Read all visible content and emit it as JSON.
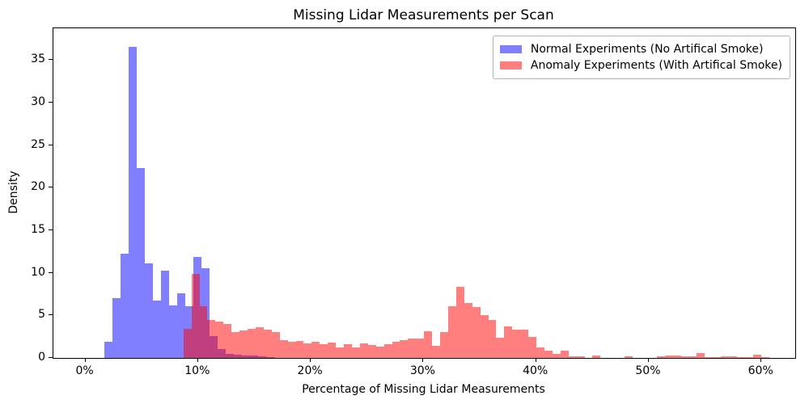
{
  "chart_data": {
    "type": "bar",
    "subtype": "overlapping-histogram",
    "title": "Missing Lidar Measurements per Scan",
    "xlabel": "Percentage of Missing Lidar Measurements",
    "ylabel": "Density",
    "grid": false,
    "legend_position": "upper right",
    "x_range_pct": [
      -2.84,
      63.0
    ],
    "y_range": [
      0,
      38.75
    ],
    "x_ticks": [
      {
        "value": 0,
        "label": "0%"
      },
      {
        "value": 10,
        "label": "10%"
      },
      {
        "value": 20,
        "label": "20%"
      },
      {
        "value": 30,
        "label": "30%"
      },
      {
        "value": 40,
        "label": "40%"
      },
      {
        "value": 50,
        "label": "50%"
      },
      {
        "value": 60,
        "label": "60%"
      }
    ],
    "y_ticks": [
      {
        "value": 0,
        "label": "0"
      },
      {
        "value": 5,
        "label": "5"
      },
      {
        "value": 10,
        "label": "10"
      },
      {
        "value": 15,
        "label": "15"
      },
      {
        "value": 20,
        "label": "20"
      },
      {
        "value": 25,
        "label": "25"
      },
      {
        "value": 30,
        "label": "30"
      },
      {
        "value": 35,
        "label": "35"
      }
    ],
    "series": [
      {
        "name": "Normal Experiments (No Artifical Smoke)",
        "key": "normal",
        "color": "rgba(0,0,255,0.5)",
        "bin_start_pct": 1.65,
        "bin_width_pct": 0.72,
        "densities": [
          1.9,
          7.0,
          12.3,
          36.6,
          22.3,
          11.1,
          6.7,
          10.3,
          6.2,
          7.6,
          6.1,
          11.9,
          10.5,
          2.6,
          1.0,
          0.5,
          0.35,
          0.3,
          0.25,
          0.2,
          0.1
        ]
      },
      {
        "name": "Anomaly Experiments (With Artifical Smoke)",
        "key": "anomaly",
        "color": "rgba(255,0,0,0.5)",
        "bin_start_pct": 8.7,
        "bin_width_pct": 0.712,
        "densities": [
          3.4,
          9.9,
          6.05,
          4.5,
          4.3,
          4.0,
          3.0,
          3.2,
          3.4,
          3.65,
          3.3,
          3.0,
          2.05,
          1.9,
          2.0,
          1.75,
          1.9,
          1.65,
          1.8,
          1.2,
          1.6,
          1.25,
          1.75,
          1.5,
          1.3,
          1.6,
          1.9,
          2.05,
          2.3,
          2.3,
          3.1,
          1.45,
          3.0,
          6.1,
          8.35,
          6.45,
          6.0,
          5.0,
          4.5,
          2.4,
          3.7,
          3.3,
          3.3,
          2.5,
          1.2,
          0.9,
          0.45,
          0.9,
          0.2,
          0.15,
          0,
          0.25,
          0,
          0,
          0,
          0.15,
          0,
          0,
          0,
          0.2,
          0.25,
          0.25,
          0.2,
          0.15,
          0.6,
          0.1,
          0.05,
          0.2,
          0.2,
          0.1,
          0.1,
          0.4,
          0.05
        ]
      }
    ]
  }
}
